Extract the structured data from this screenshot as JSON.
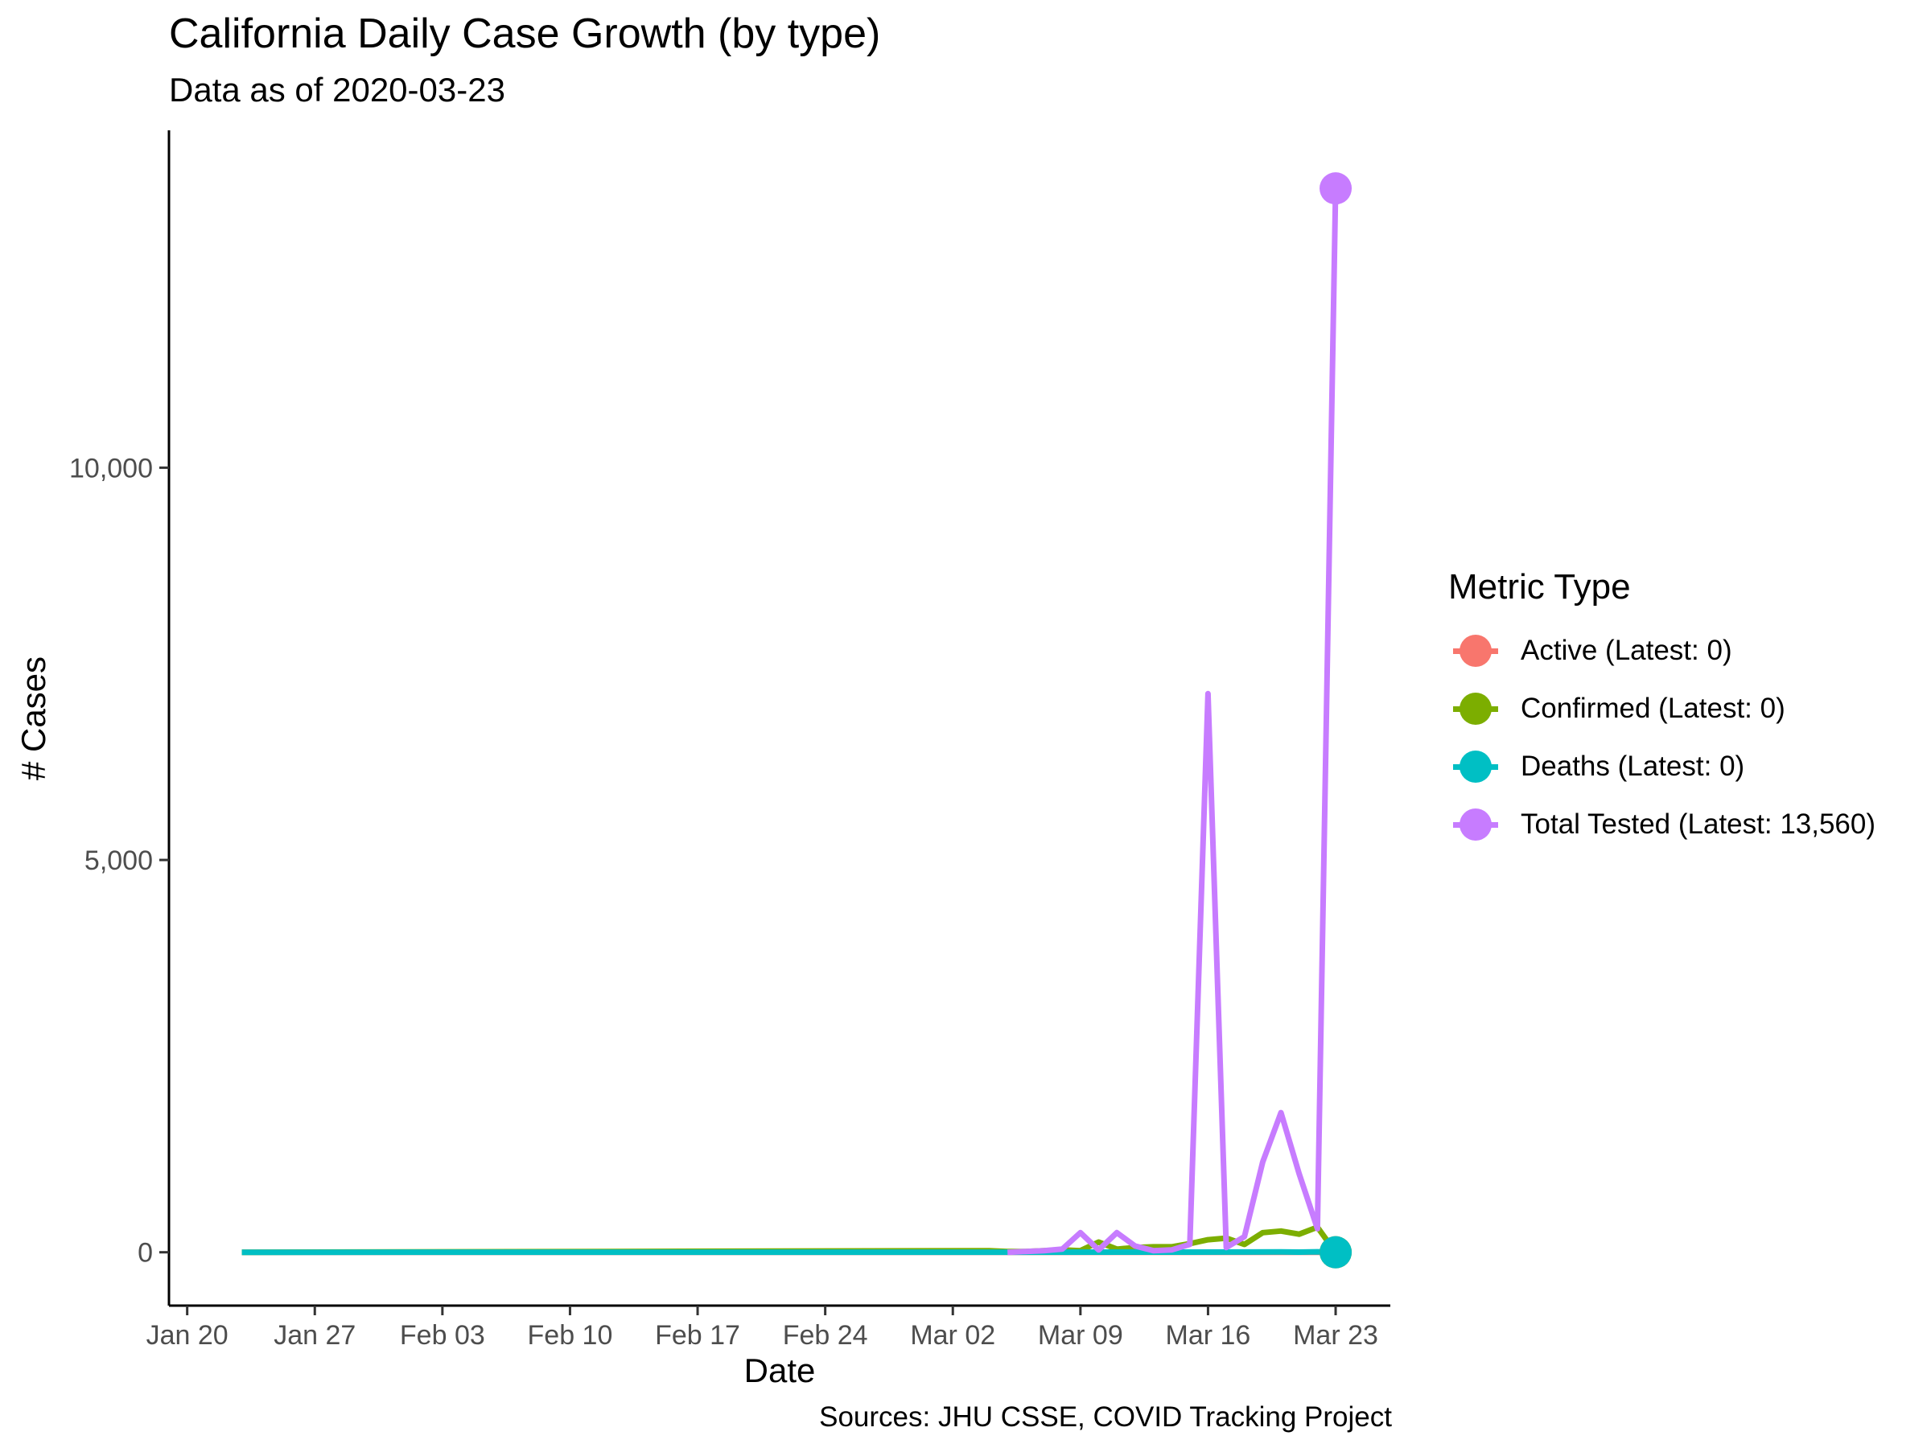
{
  "title": "California Daily Case Growth (by type)",
  "subtitle": "Data as of 2020-03-23",
  "caption": "Sources: JHU CSSE, COVID Tracking Project",
  "legend": {
    "title": "Metric Type",
    "items": [
      {
        "label": "Active (Latest: 0)",
        "color": "#F8766D"
      },
      {
        "label": "Confirmed (Latest: 0)",
        "color": "#7CAE00"
      },
      {
        "label": "Deaths (Latest: 0)",
        "color": "#00BFC4"
      },
      {
        "label": "Total Tested (Latest: 13,560)",
        "color": "#C77CFF"
      }
    ]
  },
  "chart_data": {
    "type": "line",
    "xlabel": "Date",
    "ylabel": "# Cases",
    "xlim": [
      "2020-01-19",
      "2020-03-26"
    ],
    "ylim": [
      -680,
      14300
    ],
    "x_ticks": [
      {
        "date": "2020-01-20",
        "label": "Jan 20"
      },
      {
        "date": "2020-01-27",
        "label": "Jan 27"
      },
      {
        "date": "2020-02-03",
        "label": "Feb 03"
      },
      {
        "date": "2020-02-10",
        "label": "Feb 10"
      },
      {
        "date": "2020-02-17",
        "label": "Feb 17"
      },
      {
        "date": "2020-02-24",
        "label": "Feb 24"
      },
      {
        "date": "2020-03-02",
        "label": "Mar 02"
      },
      {
        "date": "2020-03-09",
        "label": "Mar 09"
      },
      {
        "date": "2020-03-16",
        "label": "Mar 16"
      },
      {
        "date": "2020-03-23",
        "label": "Mar 23"
      }
    ],
    "y_ticks": [
      {
        "value": 0,
        "label": "0"
      },
      {
        "value": 5000,
        "label": "5,000"
      },
      {
        "value": 10000,
        "label": "10,000"
      }
    ],
    "grid": false,
    "legend_position": "right",
    "series": [
      {
        "name": "Active (Latest: 0)",
        "color": "#F8766D",
        "x": [
          "2020-01-23",
          "2020-03-23"
        ],
        "y": [
          0,
          0
        ],
        "last_point": [
          "2020-03-23",
          0
        ]
      },
      {
        "name": "Confirmed (Latest: 0)",
        "color": "#7CAE00",
        "x": [
          "2020-01-23",
          "2020-03-04",
          "2020-03-05",
          "2020-03-06",
          "2020-03-07",
          "2020-03-08",
          "2020-03-09",
          "2020-03-10",
          "2020-03-11",
          "2020-03-12",
          "2020-03-13",
          "2020-03-14",
          "2020-03-15",
          "2020-03-16",
          "2020-03-17",
          "2020-03-18",
          "2020-03-19",
          "2020-03-20",
          "2020-03-21",
          "2020-03-22",
          "2020-03-23"
        ],
        "y": [
          0,
          20,
          10,
          10,
          20,
          30,
          20,
          130,
          40,
          60,
          70,
          70,
          110,
          160,
          180,
          100,
          250,
          270,
          230,
          320,
          0
        ],
        "last_point": [
          "2020-03-23",
          0
        ]
      },
      {
        "name": "Deaths (Latest: 0)",
        "color": "#00BFC4",
        "x": [
          "2020-01-23",
          "2020-03-04",
          "2020-03-15",
          "2020-03-18",
          "2020-03-20",
          "2020-03-21",
          "2020-03-22",
          "2020-03-23"
        ],
        "y": [
          0,
          1,
          2,
          3,
          4,
          2,
          6,
          0
        ],
        "last_point": [
          "2020-03-23",
          0
        ]
      },
      {
        "name": "Total Tested (Latest: 13,560)",
        "color": "#C77CFF",
        "x": [
          "2020-03-05",
          "2020-03-06",
          "2020-03-07",
          "2020-03-08",
          "2020-03-09",
          "2020-03-10",
          "2020-03-11",
          "2020-03-12",
          "2020-03-13",
          "2020-03-14",
          "2020-03-15",
          "2020-03-16",
          "2020-03-17",
          "2020-03-18",
          "2020-03-19",
          "2020-03-20",
          "2020-03-21",
          "2020-03-22",
          "2020-03-23"
        ],
        "y": [
          0,
          10,
          20,
          40,
          250,
          30,
          250,
          80,
          20,
          30,
          100,
          7120,
          60,
          200,
          1150,
          1780,
          1000,
          300,
          13560
        ],
        "last_point": [
          "2020-03-23",
          13560
        ]
      }
    ]
  }
}
